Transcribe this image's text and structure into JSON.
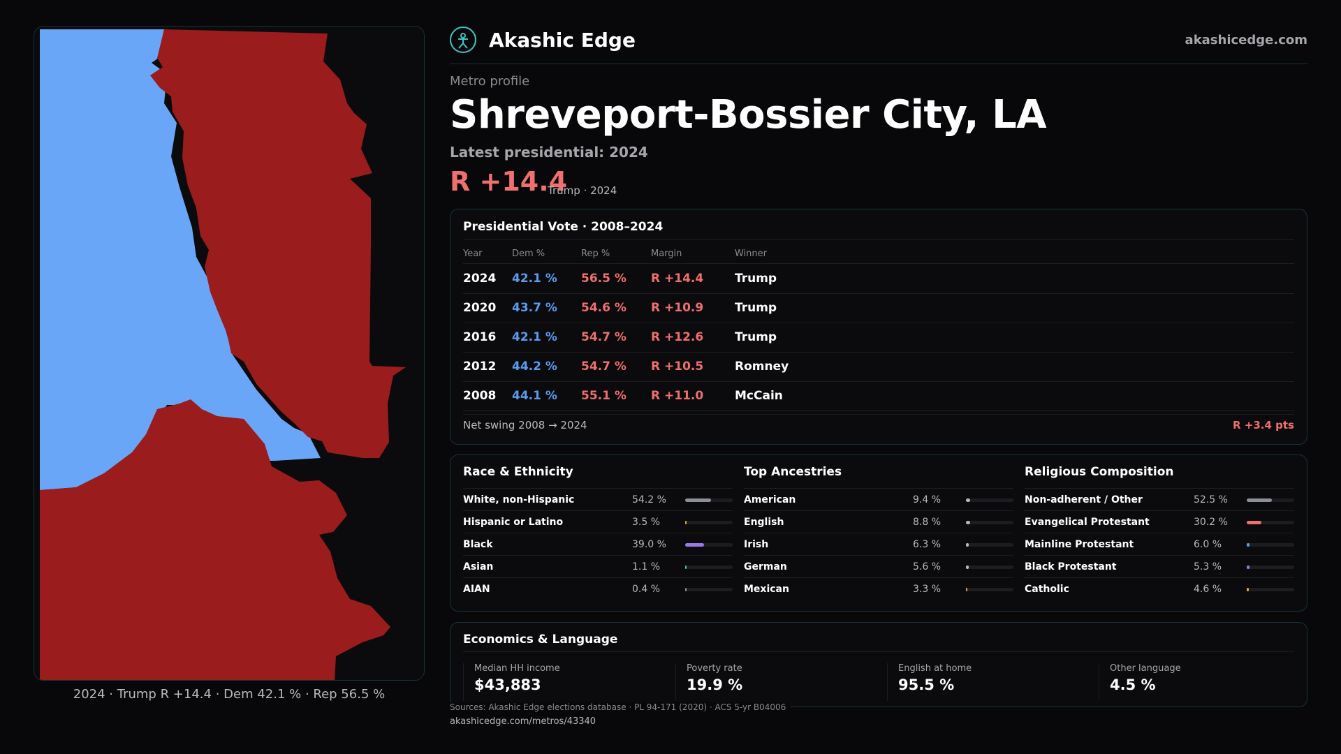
{
  "colors": {
    "dem": "#6aa6f8",
    "rep": "#9b1c1c",
    "accent": "#3cc7c7",
    "rep_text": "#f06f6f",
    "dem_text": "#5b9bf0"
  },
  "map": {
    "caption": "2024 · Trump R +14.4 · Dem 42.1 % · Rep 56.5 %"
  },
  "brand": {
    "name": "Akashic Edge",
    "site": "akashicedge.com",
    "logo_icon": "akashic-edge-logo-icon"
  },
  "header": {
    "kicker": "Metro profile",
    "title": "Shreveport-Bossier City, LA",
    "latest": "Latest presidential: 2024",
    "margin": "R +14.4",
    "margin_sub": "Trump · 2024"
  },
  "vote": {
    "title": "Presidential Vote · 2008–2024",
    "columns": [
      "Year",
      "Dem %",
      "Rep %",
      "Margin",
      "Winner"
    ],
    "rows": [
      {
        "year": "2024",
        "dem": "42.1 %",
        "rep": "56.5 %",
        "margin": "R +14.4",
        "winner": "Trump"
      },
      {
        "year": "2020",
        "dem": "43.7 %",
        "rep": "54.6 %",
        "margin": "R +10.9",
        "winner": "Trump"
      },
      {
        "year": "2016",
        "dem": "42.1 %",
        "rep": "54.7 %",
        "margin": "R +12.6",
        "winner": "Trump"
      },
      {
        "year": "2012",
        "dem": "44.2 %",
        "rep": "54.7 %",
        "margin": "R +10.5",
        "winner": "Romney"
      },
      {
        "year": "2008",
        "dem": "44.1 %",
        "rep": "55.1 %",
        "margin": "R +11.0",
        "winner": "McCain"
      }
    ],
    "swing_label": "Net swing 2008 → 2024",
    "swing_value": "R +3.4 pts"
  },
  "race": {
    "title": "Race & Ethnicity",
    "rows": [
      {
        "label": "White, non-Hispanic",
        "pct": "54.2 %",
        "value": 54.2,
        "color": "#8c8e99"
      },
      {
        "label": "Hispanic or Latino",
        "pct": "3.5 %",
        "value": 3.5,
        "color": "#e0a640"
      },
      {
        "label": "Black",
        "pct": "39.0 %",
        "value": 39.0,
        "color": "#9a78e8"
      },
      {
        "label": "Asian",
        "pct": "1.1 %",
        "value": 1.1,
        "color": "#3cc7a8"
      },
      {
        "label": "AIAN",
        "pct": "0.4 %",
        "value": 0.4,
        "color": "#8c8e99"
      }
    ]
  },
  "ancestry": {
    "title": "Top Ancestries",
    "rows": [
      {
        "label": "American",
        "pct": "9.4 %",
        "value": 9.4,
        "color": "#b9b9bd"
      },
      {
        "label": "English",
        "pct": "8.8 %",
        "value": 8.8,
        "color": "#b9b9bd"
      },
      {
        "label": "Irish",
        "pct": "6.3 %",
        "value": 6.3,
        "color": "#b9b9bd"
      },
      {
        "label": "German",
        "pct": "5.6 %",
        "value": 5.6,
        "color": "#b9b9bd"
      },
      {
        "label": "Mexican",
        "pct": "3.3 %",
        "value": 3.3,
        "color": "#e0a640"
      }
    ]
  },
  "religion": {
    "title": "Religious Composition",
    "rows": [
      {
        "label": "Non-adherent / Other",
        "pct": "52.5 %",
        "value": 52.5,
        "color": "#8c8e99"
      },
      {
        "label": "Evangelical Protestant",
        "pct": "30.2 %",
        "value": 30.2,
        "color": "#f06f6f"
      },
      {
        "label": "Mainline Protestant",
        "pct": "6.0 %",
        "value": 6.0,
        "color": "#5b9bf0"
      },
      {
        "label": "Black Protestant",
        "pct": "5.3 %",
        "value": 5.3,
        "color": "#9a78e8"
      },
      {
        "label": "Catholic",
        "pct": "4.6 %",
        "value": 4.6,
        "color": "#e0a640"
      }
    ]
  },
  "economics": {
    "title": "Economics & Language",
    "stats": [
      {
        "label": "Median HH income",
        "value": "$43,883"
      },
      {
        "label": "Poverty rate",
        "value": "19.9 %"
      },
      {
        "label": "English at home",
        "value": "95.5 %"
      },
      {
        "label": "Other language",
        "value": "4.5 %"
      }
    ]
  },
  "footer": {
    "sources": "Sources: Akashic Edge elections database · PL 94-171 (2020) · ACS 5-yr B04006",
    "permalink": "akashicedge.com/metros/43340"
  }
}
